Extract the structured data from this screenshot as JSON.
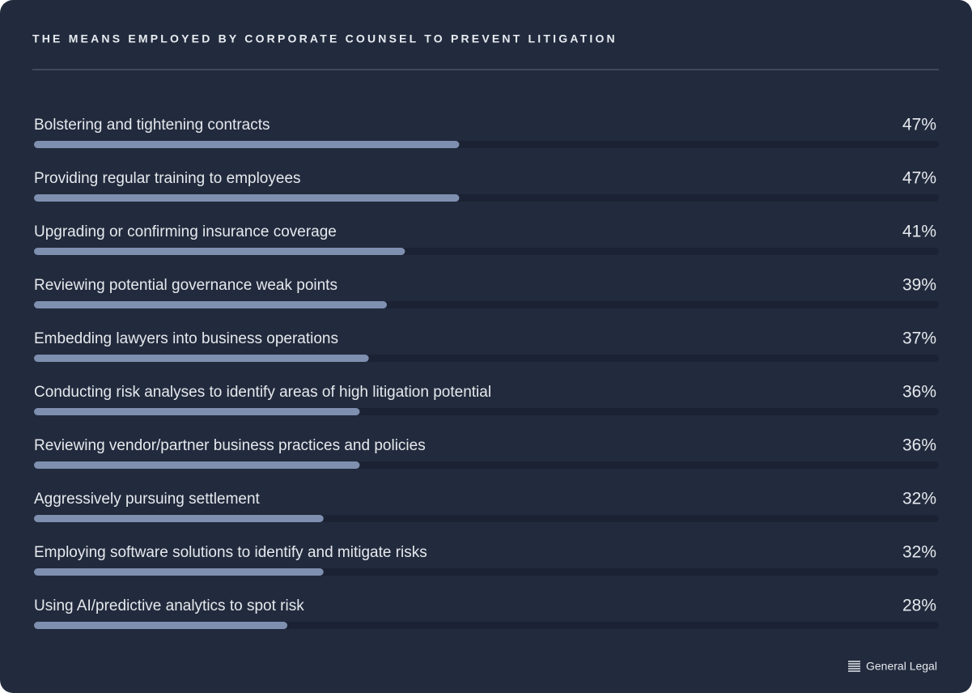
{
  "chart_data": {
    "type": "bar",
    "orientation": "horizontal",
    "title": "THE MEANS EMPLOYED BY CORPORATE COUNSEL TO PREVENT LITIGATION",
    "categories": [
      "Bolstering and tightening contracts",
      "Providing regular training to employees",
      "Upgrading or confirming insurance coverage",
      "Reviewing potential governance weak points",
      "Embedding lawyers into business operations",
      "Conducting risk analyses to identify areas of high litigation potential",
      "Reviewing vendor/partner business practices and policies",
      "Aggressively pursuing settlement",
      "Employing software solutions to identify and mitigate risks",
      "Using AI/predictive analytics to spot risk"
    ],
    "values": [
      47,
      47,
      41,
      39,
      37,
      36,
      36,
      32,
      32,
      28
    ],
    "value_labels": [
      "47%",
      "47%",
      "41%",
      "39%",
      "37%",
      "36%",
      "36%",
      "32%",
      "32%",
      "28%"
    ],
    "xlim": [
      0,
      100
    ],
    "color": "#7f8fb0",
    "brand": "General Legal"
  }
}
